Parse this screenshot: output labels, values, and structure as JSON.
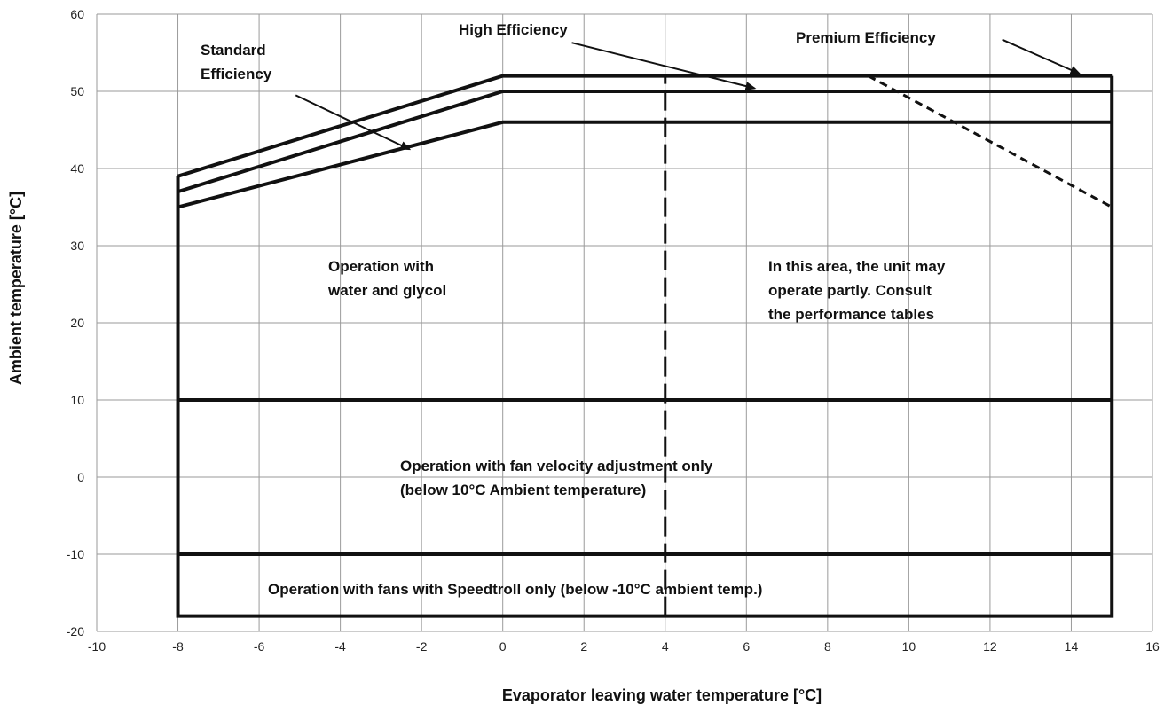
{
  "chart_data": {
    "type": "line",
    "xlabel": "Evaporator leaving water temperature [°C]",
    "ylabel": "Ambient temperature [°C]",
    "xlim": [
      -10,
      16
    ],
    "ylim": [
      -20,
      60
    ],
    "x_ticks": [
      -10,
      -8,
      -6,
      -4,
      -2,
      0,
      2,
      4,
      6,
      8,
      10,
      12,
      14,
      16
    ],
    "y_ticks": [
      -20,
      -10,
      0,
      10,
      20,
      30,
      40,
      50,
      60
    ],
    "grid": true,
    "series": [
      {
        "name": "Premium Efficiency",
        "x": [
          -8,
          0,
          15
        ],
        "y": [
          39,
          52,
          52
        ]
      },
      {
        "name": "High Efficiency",
        "x": [
          -8,
          0,
          15
        ],
        "y": [
          37,
          50,
          50
        ]
      },
      {
        "name": "Standard Efficiency",
        "x": [
          -8,
          0,
          15
        ],
        "y": [
          35,
          46,
          46
        ]
      }
    ],
    "envelope": {
      "left_x": -8,
      "right_x": 15,
      "top_left_y": 39,
      "bottom_y": -18
    },
    "band_lines_y": [
      10,
      -10
    ],
    "divider_line": {
      "x": 4,
      "y_from": -18,
      "y_to": 52,
      "style": "dashed"
    },
    "partial_operation_line": {
      "x": [
        9,
        15
      ],
      "y": [
        52,
        35
      ],
      "style": "dashed"
    },
    "annotations": {
      "standard": [
        "Standard",
        "Efficiency"
      ],
      "high": "High Efficiency",
      "premium": "Premium Efficiency",
      "glycol": [
        "Operation with",
        "water and glycol"
      ],
      "partial": [
        "In this area, the unit may",
        "operate partly. Consult",
        "the performance tables"
      ],
      "fan_velocity": [
        "Operation with fan velocity adjustment only",
        "(below 10°C Ambient temperature)"
      ],
      "speedtroll": "Operation with fans with Speedtroll only (below -10°C ambient temp.)"
    },
    "arrows": {
      "standard": {
        "from": [
          -5.1,
          49.5
        ],
        "to": [
          -2.3,
          42.5
        ]
      },
      "high": {
        "from": [
          1.7,
          56.3
        ],
        "to": [
          6.2,
          50.4
        ]
      },
      "premium": {
        "from": [
          12.3,
          56.7
        ],
        "to": [
          14.2,
          52.3
        ]
      }
    }
  }
}
